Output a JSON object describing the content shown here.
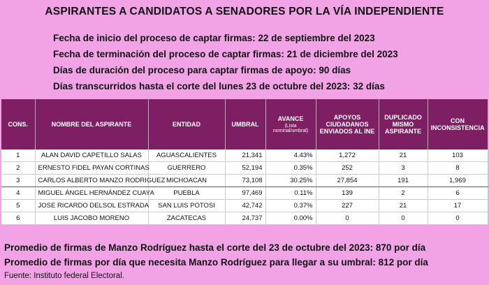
{
  "header": {
    "title": "ASPIRANTES A CANDIDATOS A SENADORES POR LA VÍA INDEPENDIENTE",
    "lines": [
      "Fecha de inicio del proceso de captar firmas: 22 de septiembre del 2023",
      "Fecha de terminación del proceso de captar firmas: 21 de diciembre del 2023",
      "Días de duración del proceso para captar firmas de apoyo: 90 días",
      "Días transcurridos hasta el corte del lunes 23 de octubre del 2023: 32 días"
    ]
  },
  "table": {
    "columns": [
      {
        "label": "CONS."
      },
      {
        "label": "NOMBRE DEL ASPIRANTE"
      },
      {
        "label": "ENTIDAD"
      },
      {
        "label": "UMBRAL"
      },
      {
        "label": "AVANCE",
        "sublabel": "(Lista nominal/umbral)"
      },
      {
        "label": "APOYOS CIUDADANOS ENVIADOS AL INE"
      },
      {
        "label": "DUPLICADO MISMO ASPIRANTE"
      },
      {
        "label": "CON INCONSISTENCIA"
      }
    ],
    "rows": [
      [
        "1",
        "ALAN DAVID CAPETILLO SALAS",
        "AGUASCALIENTES",
        "21,341",
        "4.43%",
        "1,272",
        "21",
        "103"
      ],
      [
        "2",
        "ERNESTO FIDEL PAYAN CORTINAS",
        "GUERRERO",
        "52,194",
        "0.35%",
        "252",
        "3",
        "8"
      ],
      [
        "3",
        "CARLOS ALBERTO MANZO RODRIGUEZ",
        "MICHOACAN",
        "73,108",
        "30.25%",
        "27,854",
        "191",
        "1,969"
      ],
      [
        "4",
        "MIGUEL ÁNGEL HERNÁNDEZ CUAYA",
        "PUEBLA",
        "97,469",
        "0.11%",
        "139",
        "2",
        "6"
      ],
      [
        "5",
        "JOSE RICARDO DELSOL ESTRADA",
        "SAN LUIS POTOSI",
        "42,742",
        "0.37%",
        "227",
        "21",
        "17"
      ],
      [
        "6",
        "LUIS JACOBO MORENO",
        "ZACATECAS",
        "24,737",
        "0.00%",
        "0",
        "0",
        "0"
      ]
    ]
  },
  "footer": {
    "lines": [
      "Promedio de firmas de Manzo Rodríguez hasta el corte del 23 de octubre del 2023: 870 por día",
      "Promedio de firmas por día que necesita Manzo Rodríguez para llegar a su umbral: 812 por día"
    ],
    "source": "Fuente: Instituto federal Electoral."
  }
}
